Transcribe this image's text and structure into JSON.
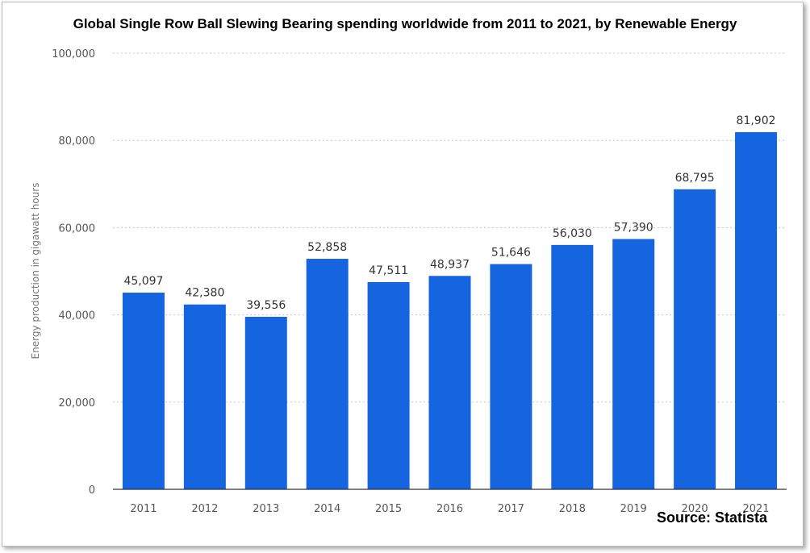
{
  "chart_data": {
    "type": "bar",
    "title": "Global Single Row Ball Slewing Bearing spending worldwide from 2011 to 2021, by Renewable Energy",
    "xlabel": "",
    "ylabel": "Energy production in gigawatt hours",
    "categories": [
      "2011",
      "2012",
      "2013",
      "2014",
      "2015",
      "2016",
      "2017",
      "2018",
      "2019",
      "2020",
      "2021"
    ],
    "values": [
      45097,
      42380,
      39556,
      52858,
      47511,
      48937,
      51646,
      56030,
      57390,
      68795,
      81902
    ],
    "value_labels": [
      "45,097",
      "42,380",
      "39,556",
      "52,858",
      "47,511",
      "48,937",
      "51,646",
      "56,030",
      "57,390",
      "68,795",
      "81,902"
    ],
    "ylim": [
      0,
      100000
    ],
    "yticks": [
      0,
      20000,
      40000,
      60000,
      80000,
      100000
    ],
    "ytick_labels": [
      "0",
      "20,000",
      "40,000",
      "60,000",
      "80,000",
      "100,000"
    ],
    "grid": true,
    "bar_color": "#1565e0",
    "source": "Source: Statista"
  }
}
